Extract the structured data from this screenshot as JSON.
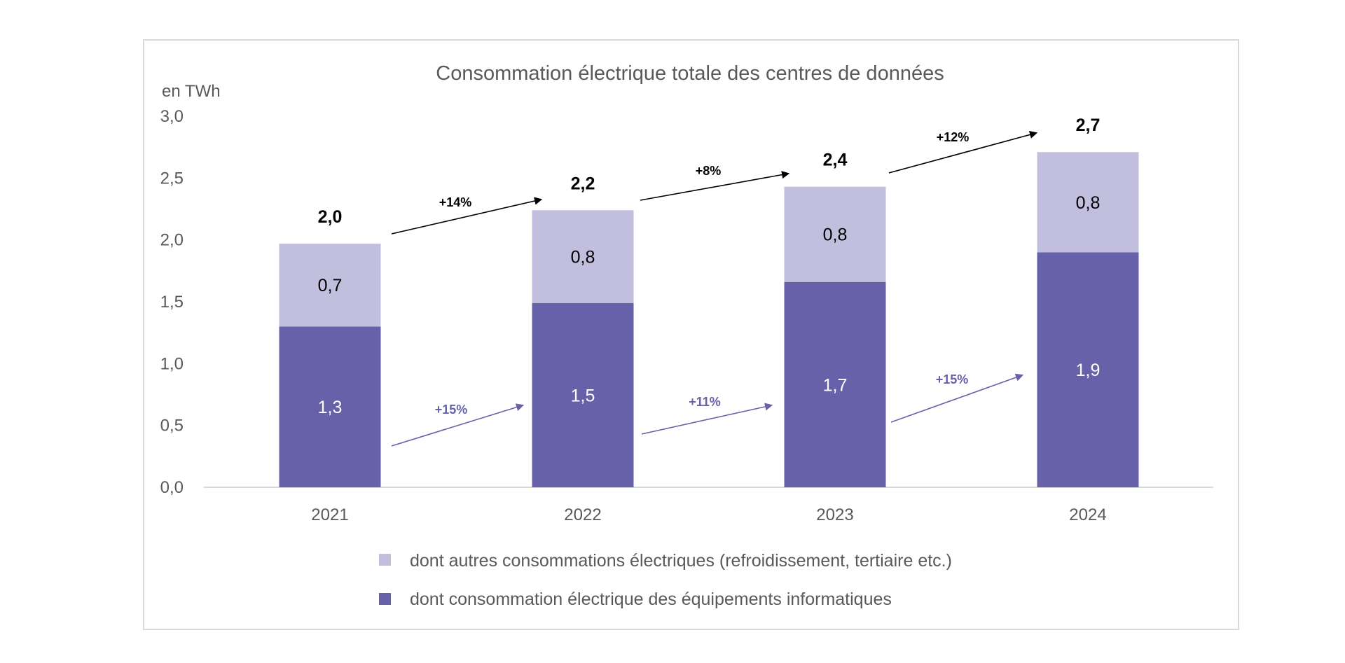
{
  "chart_data": {
    "type": "bar",
    "stacked": true,
    "title": "Consommation électrique totale des centres de données",
    "ylabel": "en TWh",
    "ylim": [
      0,
      3.0
    ],
    "y_ticks": [
      "0,0",
      "0,5",
      "1,0",
      "1,5",
      "2,0",
      "2,5",
      "3,0"
    ],
    "y_tick_values": [
      0,
      0.5,
      1.0,
      1.5,
      2.0,
      2.5,
      3.0
    ],
    "categories": [
      "2021",
      "2022",
      "2023",
      "2024"
    ],
    "grid": false,
    "legend_position": "bottom",
    "series": [
      {
        "name": "dont consommation électrique des équipements informatiques",
        "color": "#6661a8",
        "values": [
          1.3,
          1.49,
          1.66,
          1.9
        ],
        "labels": [
          "1,3",
          "1,5",
          "1,7",
          "1,9"
        ]
      },
      {
        "name": "dont autres consommations électriques (refroidissement, tertiaire etc.)",
        "color": "#c1bfdd",
        "values": [
          0.67,
          0.75,
          0.77,
          0.81
        ],
        "labels": [
          "0,7",
          "0,8",
          "0,8",
          "0,8"
        ]
      }
    ],
    "totals": [
      "2,0",
      "2,2",
      "2,4",
      "2,7"
    ],
    "growth_total": [
      "+14%",
      "+8%",
      "+12%"
    ],
    "growth_it": [
      "+15%",
      "+11%",
      "+15%"
    ],
    "colors": {
      "frame": "#d9d9d9",
      "axis": "#d9d9d9",
      "text": "#595959",
      "total_arrow": "#000000",
      "it_arrow": "#6661a8"
    }
  }
}
